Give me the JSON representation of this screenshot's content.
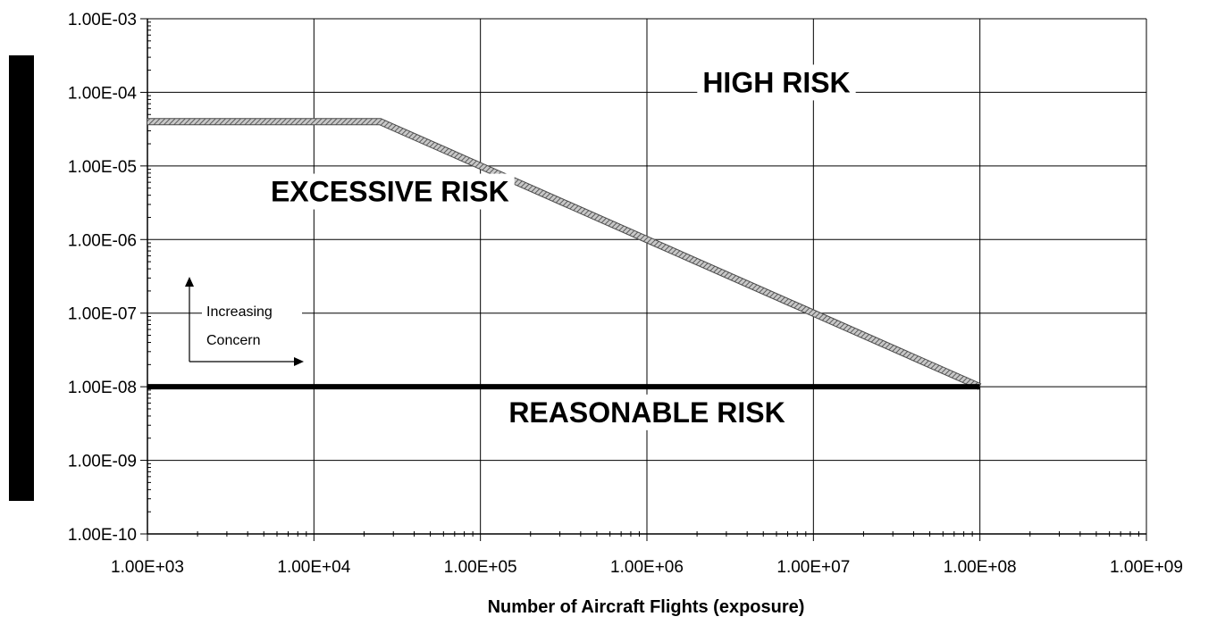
{
  "chart_data": {
    "type": "line",
    "title": "",
    "xlabel": "Number of Aircraft Flights (exposure)",
    "ylabel": "",
    "xscale": "log",
    "yscale": "log",
    "xlim": [
      1000,
      1000000000
    ],
    "ylim": [
      1e-10,
      0.001
    ],
    "grid": true,
    "x_ticks": [
      "1.00E+03",
      "1.00E+04",
      "1.00E+05",
      "1.00E+06",
      "1.00E+07",
      "1.00E+08",
      "1.00E+09"
    ],
    "y_ticks": [
      "1.00E-03",
      "1.00E-04",
      "1.00E-05",
      "1.00E-06",
      "1.00E-07",
      "1.00E-08",
      "1.00E-09",
      "1.00E-10"
    ],
    "series": [
      {
        "style": "hatched-gray",
        "color": "#9a9a9a",
        "points": [
          [
            1000,
            4e-05
          ],
          [
            25000,
            4e-05
          ],
          [
            100000,
            1e-05
          ],
          [
            1000000,
            1e-06
          ],
          [
            10000000,
            1e-07
          ],
          [
            100000000,
            1e-08
          ]
        ]
      },
      {
        "style": "solid-black",
        "color": "#000000",
        "points": [
          [
            1000,
            1e-08
          ],
          [
            100000000,
            1e-08
          ]
        ]
      }
    ],
    "regions": [
      {
        "label": "HIGH RISK",
        "x": 6000000,
        "y": 0.0001
      },
      {
        "label": "EXCESSIVE RISK",
        "x": 5500,
        "y": 3.3e-06
      },
      {
        "label": "REASONABLE RISK",
        "x": 1000000,
        "y": 3.3e-09
      }
    ],
    "annotation": {
      "lines": [
        "Increasing",
        "Concern"
      ]
    }
  }
}
